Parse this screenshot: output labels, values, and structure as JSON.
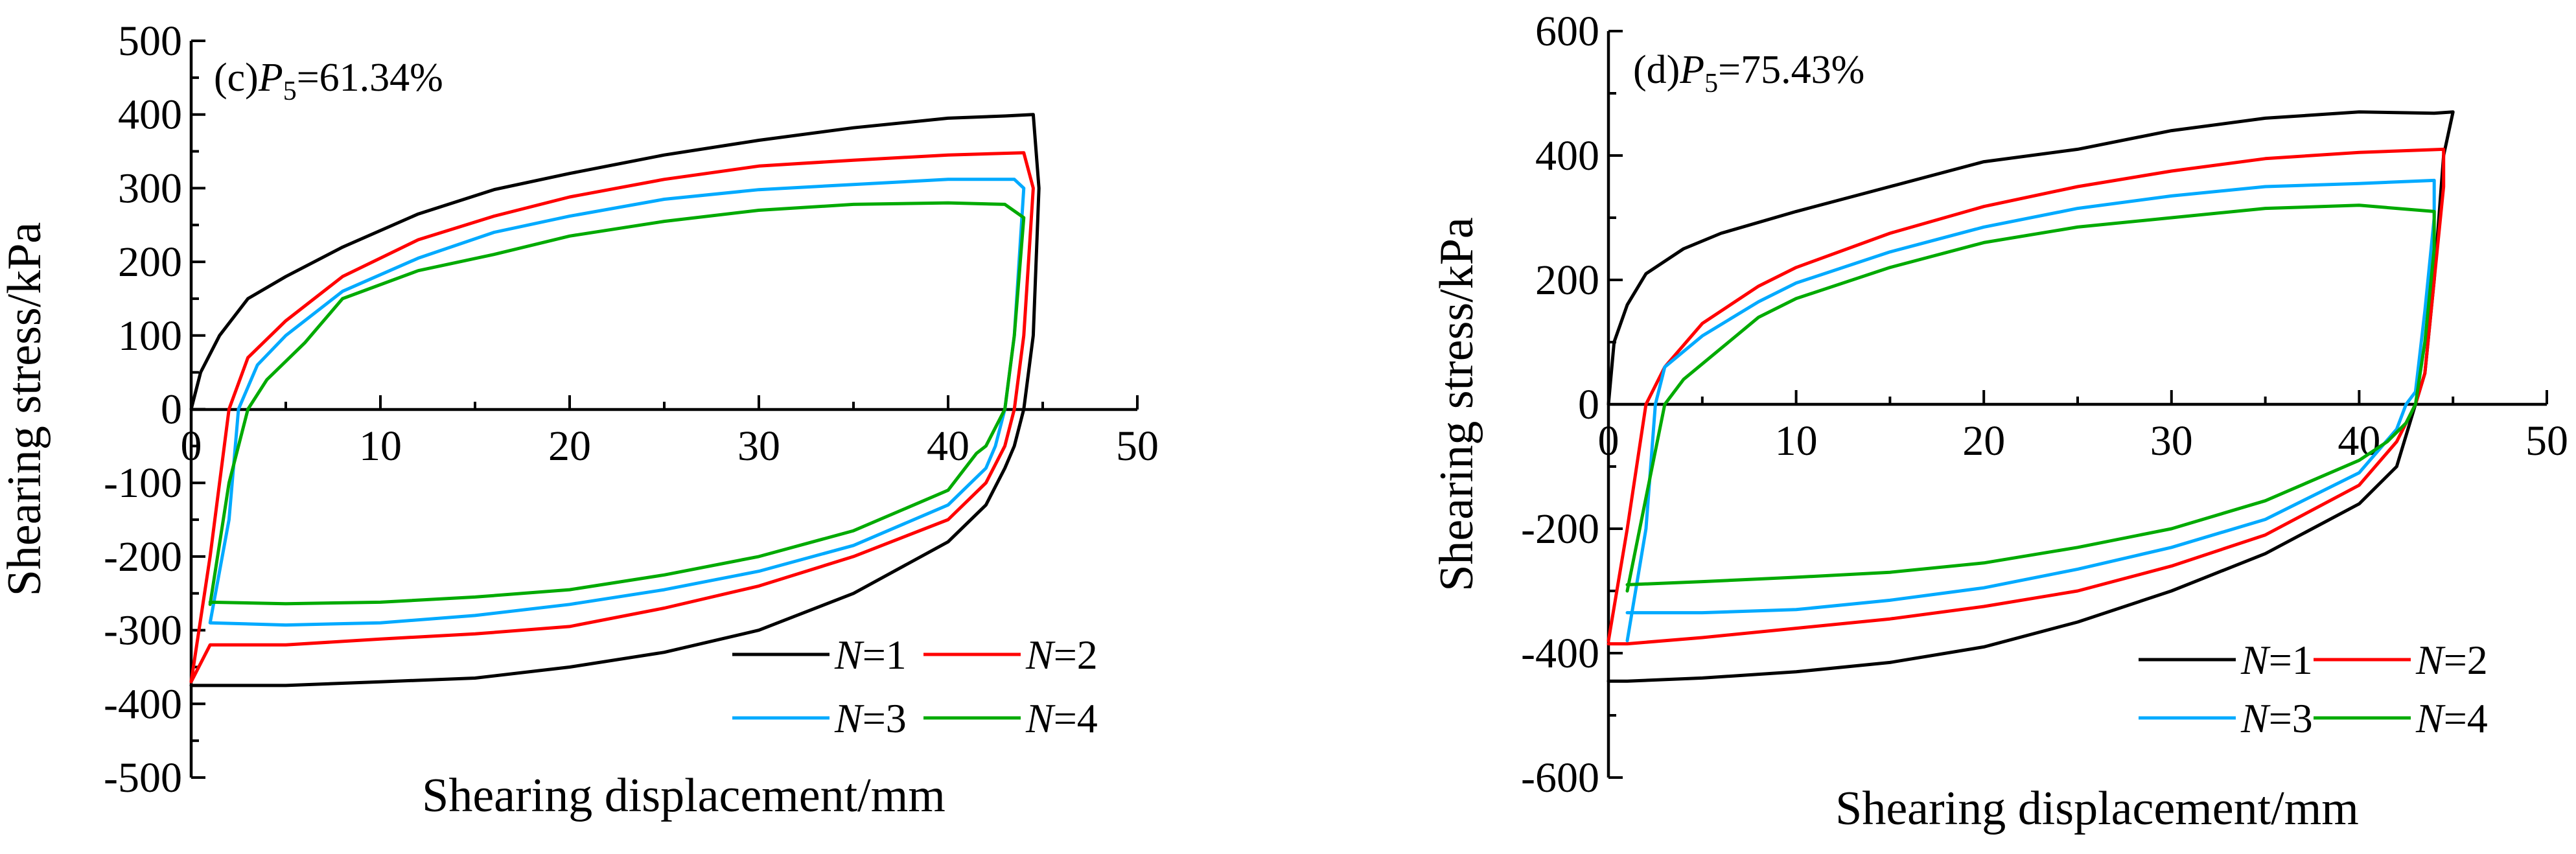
{
  "chart_data": [
    {
      "panel": "c",
      "type": "line",
      "title": "(c)P5=61.34%",
      "title_prefix": "(c)",
      "title_var": "P",
      "title_sub": "5",
      "title_value": "=61.34%",
      "xlabel": "Shearing displacement/mm",
      "ylabel": "Shearing stress/kPa",
      "xlim": [
        0,
        50
      ],
      "ylim": [
        -500,
        500
      ],
      "xticks": [
        "0",
        "10",
        "20",
        "30",
        "40",
        "50"
      ],
      "yticks": [
        "500",
        "400",
        "300",
        "200",
        "100",
        "0",
        "-100",
        "-200",
        "-300",
        "-400",
        "-500"
      ],
      "legend_placement": "bottom-right",
      "series": [
        {
          "name": "N=1",
          "var": "N",
          "value": "=1",
          "color": "#000000",
          "x": [
            0,
            0.5,
            1.5,
            3,
            5,
            8,
            12,
            16,
            20,
            25,
            30,
            35,
            40,
            43,
            44.5,
            44.8,
            44.5,
            44,
            43.5,
            43,
            42,
            40,
            35,
            30,
            25,
            20,
            15,
            10,
            5,
            2,
            0.5,
            0
          ],
          "y": [
            0,
            50,
            100,
            150,
            180,
            220,
            265,
            298,
            320,
            345,
            365,
            382,
            395,
            398,
            400,
            300,
            100,
            0,
            -50,
            -80,
            -130,
            -180,
            -250,
            -300,
            -330,
            -350,
            -365,
            -370,
            -375,
            -375,
            -375,
            -375
          ]
        },
        {
          "name": "N=2",
          "var": "N",
          "value": "=2",
          "color": "#ff0000",
          "x": [
            0,
            1,
            2,
            3,
            5,
            8,
            12,
            16,
            20,
            25,
            30,
            35,
            40,
            44,
            44.5,
            44,
            43.5,
            43,
            42,
            40,
            35,
            30,
            25,
            20,
            15,
            10,
            5,
            1,
            0
          ],
          "y": [
            -370,
            -200,
            0,
            70,
            120,
            180,
            230,
            262,
            288,
            312,
            330,
            338,
            345,
            348,
            300,
            100,
            0,
            -50,
            -100,
            -150,
            -200,
            -240,
            -270,
            -295,
            -305,
            -312,
            -320,
            -320,
            -370
          ]
        },
        {
          "name": "N=3",
          "var": "N",
          "value": "=3",
          "color": "#00aaff",
          "x": [
            1,
            2,
            2.5,
            3.5,
            5,
            8,
            12,
            16,
            20,
            25,
            30,
            35,
            40,
            43.5,
            44,
            43.5,
            43,
            42.5,
            42,
            40,
            35,
            30,
            25,
            20,
            15,
            10,
            5,
            1
          ],
          "y": [
            -290,
            -150,
            0,
            60,
            100,
            160,
            205,
            240,
            262,
            285,
            298,
            305,
            312,
            312,
            300,
            100,
            0,
            -50,
            -80,
            -130,
            -185,
            -220,
            -245,
            -265,
            -280,
            -290,
            -293,
            -290
          ]
        },
        {
          "name": "N=4",
          "var": "N",
          "value": "=4",
          "color": "#00aa00",
          "x": [
            1,
            2,
            3,
            4,
            6,
            8,
            12,
            16,
            20,
            25,
            30,
            35,
            40,
            43,
            44,
            43.5,
            43,
            42,
            41.5,
            40,
            35,
            30,
            25,
            20,
            15,
            10,
            5,
            1
          ],
          "y": [
            -265,
            -100,
            0,
            40,
            90,
            150,
            188,
            210,
            235,
            255,
            270,
            278,
            280,
            278,
            260,
            100,
            0,
            -50,
            -60,
            -110,
            -165,
            -200,
            -225,
            -245,
            -255,
            -262,
            -264,
            -262
          ]
        }
      ]
    },
    {
      "panel": "d",
      "type": "line",
      "title": "(d)P5=75.43%",
      "title_prefix": "(d)",
      "title_var": "P",
      "title_sub": "5",
      "title_value": "=75.43%",
      "xlabel": "Shearing displacement/mm",
      "ylabel": "Shearing stress/kPa",
      "xlim": [
        0,
        50
      ],
      "ylim": [
        -600,
        600
      ],
      "xticks": [
        "0",
        "10",
        "20",
        "30",
        "40",
        "50"
      ],
      "yticks": [
        "600",
        "400",
        "200",
        "0",
        "-200",
        "-400",
        "-600"
      ],
      "legend_placement": "bottom-right",
      "series": [
        {
          "name": "N=1",
          "var": "N",
          "value": "=1",
          "color": "#000000",
          "x": [
            0,
            0.3,
            1,
            2,
            4,
            6,
            10,
            15,
            20,
            25,
            30,
            35,
            40,
            44,
            45,
            44.5,
            44,
            43.5,
            43,
            42.5,
            42,
            40,
            35,
            30,
            25,
            20,
            15,
            10,
            5,
            1,
            0
          ],
          "y": [
            0,
            100,
            160,
            210,
            250,
            275,
            310,
            350,
            390,
            410,
            440,
            460,
            470,
            468,
            470,
            400,
            200,
            50,
            0,
            -50,
            -100,
            -160,
            -240,
            -300,
            -350,
            -390,
            -415,
            -430,
            -440,
            -445,
            -445
          ]
        },
        {
          "name": "N=2",
          "var": "N",
          "value": "=2",
          "color": "#ff0000",
          "x": [
            0,
            1,
            2,
            3,
            5,
            8,
            10,
            15,
            20,
            25,
            30,
            35,
            40,
            44.5,
            44.5,
            44,
            43.5,
            43,
            42,
            40,
            35,
            30,
            25,
            20,
            15,
            10,
            5,
            1,
            0
          ],
          "y": [
            -380,
            -200,
            0,
            60,
            130,
            190,
            220,
            275,
            318,
            350,
            375,
            395,
            405,
            410,
            350,
            200,
            50,
            0,
            -60,
            -130,
            -210,
            -260,
            -300,
            -325,
            -345,
            -360,
            -375,
            -385,
            -385
          ]
        },
        {
          "name": "N=3",
          "var": "N",
          "value": "=3",
          "color": "#00aaff",
          "x": [
            1,
            2,
            2.5,
            3,
            5,
            8,
            10,
            15,
            20,
            25,
            30,
            35,
            40,
            44,
            44,
            43.5,
            43,
            42.5,
            42,
            40,
            35,
            30,
            25,
            20,
            15,
            10,
            5,
            1
          ],
          "y": [
            -380,
            -200,
            0,
            60,
            110,
            165,
            195,
            245,
            285,
            315,
            335,
            350,
            355,
            360,
            300,
            150,
            20,
            0,
            -40,
            -110,
            -185,
            -230,
            -265,
            -295,
            -315,
            -330,
            -335,
            -335
          ]
        },
        {
          "name": "N=4",
          "var": "N",
          "value": "=4",
          "color": "#00aa00",
          "x": [
            1,
            2,
            3,
            4,
            6,
            8,
            10,
            15,
            20,
            25,
            30,
            35,
            40,
            44,
            44,
            43.5,
            43,
            42.5,
            41.5,
            40,
            35,
            30,
            25,
            20,
            15,
            10,
            5,
            1
          ],
          "y": [
            -300,
            -150,
            0,
            40,
            90,
            140,
            170,
            220,
            260,
            285,
            300,
            315,
            320,
            310,
            250,
            100,
            0,
            -30,
            -60,
            -90,
            -155,
            -200,
            -230,
            -255,
            -270,
            -278,
            -285,
            -290
          ]
        }
      ]
    }
  ]
}
